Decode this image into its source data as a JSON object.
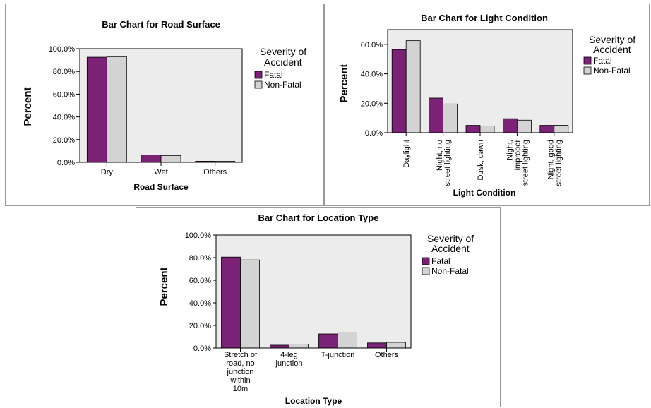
{
  "colors": {
    "fatal": "#7b2277",
    "non_fatal": "#d3d3d3",
    "plot_bg": "#ececec",
    "border": "#000000"
  },
  "chart_data": [
    {
      "type": "bar",
      "title": "Bar Chart for Road Surface",
      "xlabel": "Road Surface",
      "ylabel": "Percent",
      "categories": [
        "Dry",
        "Wet",
        "Others"
      ],
      "series": [
        {
          "name": "Fatal",
          "values": [
            92.5,
            6.5,
            1.0
          ]
        },
        {
          "name": "Non-Fatal",
          "values": [
            93.0,
            6.0,
            1.0
          ]
        }
      ],
      "ylim": [
        0,
        100
      ],
      "yticks": [
        0,
        20,
        40,
        60,
        80,
        100
      ],
      "ytick_labels": [
        "0.0%",
        "20.0%",
        "40.0%",
        "60.0%",
        "80.0%",
        "100.0%"
      ],
      "legend_title": [
        "Severity of",
        "Accident"
      ],
      "legend_position": "right",
      "grid": false
    },
    {
      "type": "bar",
      "title": "Bar Chart for Light Condition",
      "xlabel": "Light Condition",
      "ylabel": "Percent",
      "categories": [
        "Daylight",
        "Night, no street lighting",
        "Dusk, dawn",
        "Night, improper street lighting",
        "Night, good street lighting"
      ],
      "category_lines": [
        [
          "Daylight"
        ],
        [
          "Night, no",
          "street lighting"
        ],
        [
          "Dusk, dawn"
        ],
        [
          "Night,",
          "improper",
          "street lighting"
        ],
        [
          "Night, good",
          "street lighting"
        ]
      ],
      "series": [
        {
          "name": "Fatal",
          "values": [
            56.5,
            23.5,
            5.0,
            9.5,
            5.0
          ]
        },
        {
          "name": "Non-Fatal",
          "values": [
            62.5,
            19.5,
            4.5,
            8.5,
            5.0
          ]
        }
      ],
      "ylim": [
        0,
        70
      ],
      "yticks": [
        0,
        20,
        40,
        60
      ],
      "ytick_labels": [
        "0.0%",
        "20.0%",
        "40.0%",
        "60.0%"
      ],
      "legend_title": [
        "Severity of",
        "Accident"
      ],
      "legend_position": "right",
      "grid": false
    },
    {
      "type": "bar",
      "title": "Bar Chart for Location Type",
      "xlabel": "Location Type",
      "ylabel": "Percent",
      "categories": [
        "Stretch of road, no junction within 10m",
        "4-leg junction",
        "T-junction",
        "Others"
      ],
      "category_lines": [
        [
          "Stretch of",
          "road, no",
          "junction",
          "within",
          "10m"
        ],
        [
          "4-leg",
          "junction"
        ],
        [
          "T-junction"
        ],
        [
          "Others"
        ]
      ],
      "series": [
        {
          "name": "Fatal",
          "values": [
            80.5,
            2.5,
            12.5,
            4.5
          ]
        },
        {
          "name": "Non-Fatal",
          "values": [
            78.0,
            3.5,
            14.0,
            5.0
          ]
        }
      ],
      "ylim": [
        0,
        100
      ],
      "yticks": [
        0,
        20,
        40,
        60,
        80,
        100
      ],
      "ytick_labels": [
        "0.0%",
        "20.0%",
        "40.0%",
        "60.0%",
        "80.0%",
        "100.0%"
      ],
      "legend_title": [
        "Severity of",
        "Accident"
      ],
      "legend_position": "right",
      "grid": false
    }
  ]
}
